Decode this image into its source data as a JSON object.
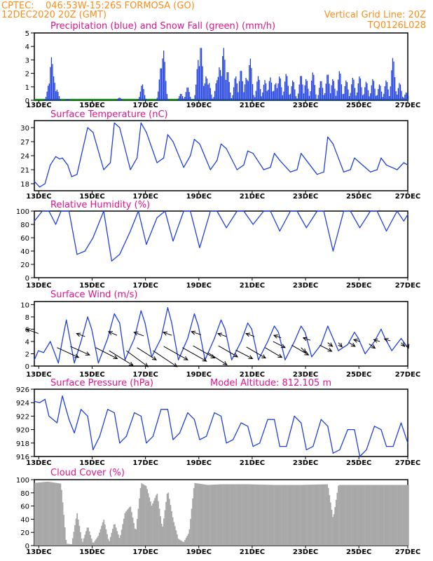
{
  "header": {
    "source": "CPTEC:",
    "location": "046:53W-15:26S   FORMOSA (GO)",
    "init": "12DEC2020 20Z (GMT)",
    "grid_note": "Vertical Grid Line: 20Z",
    "code": "TQ0126L028"
  },
  "colors": {
    "header": "#ff8c1a",
    "title": "#e0148c",
    "line": "#2040e0",
    "snow": "#00a000",
    "cloud": "#a8a8a8",
    "arrow": "#000000"
  },
  "x_axis": {
    "labels": [
      "13DEC",
      "15DEC",
      "17DEC",
      "19DEC",
      "21DEC",
      "23DEC",
      "25DEC",
      "27DEC"
    ],
    "unit": "days from 12DEC2020 20Z"
  },
  "chart_data": [
    {
      "id": "precip",
      "type": "bar",
      "title": "Precipitation (blue) and Snow Fall (green) (mm/h)",
      "ylim": [
        0,
        5
      ],
      "yticks": [
        0,
        1,
        2,
        3,
        4,
        5
      ],
      "peaks": [
        [
          0.55,
          1.2
        ],
        [
          0.65,
          3.2
        ],
        [
          0.72,
          1.8
        ],
        [
          0.85,
          0.8
        ],
        [
          1.25,
          0.1
        ],
        [
          3.2,
          0.2
        ],
        [
          4.05,
          1.2
        ],
        [
          4.75,
          2.5
        ],
        [
          4.85,
          3.7
        ],
        [
          5.5,
          0.5
        ],
        [
          5.75,
          1.0
        ],
        [
          6.15,
          3.0
        ],
        [
          6.25,
          4.1
        ],
        [
          6.45,
          1.8
        ],
        [
          6.55,
          1.3
        ],
        [
          6.85,
          1.5
        ],
        [
          6.95,
          2.5
        ],
        [
          7.1,
          3.9
        ],
        [
          7.25,
          2.2
        ],
        [
          7.55,
          1.8
        ],
        [
          7.75,
          2.3
        ],
        [
          7.95,
          1.7
        ],
        [
          8.1,
          3.1
        ],
        [
          8.4,
          1.8
        ],
        [
          8.65,
          1.5
        ],
        [
          8.85,
          1.7
        ],
        [
          9.05,
          1.3
        ],
        [
          9.2,
          1.8
        ],
        [
          9.45,
          2.0
        ],
        [
          9.7,
          1.5
        ],
        [
          10.0,
          1.9
        ],
        [
          10.2,
          1.6
        ],
        [
          10.45,
          2.1
        ],
        [
          10.75,
          1.5
        ],
        [
          11.0,
          2.0
        ],
        [
          11.2,
          1.6
        ],
        [
          11.45,
          2.2
        ],
        [
          11.7,
          1.5
        ],
        [
          11.95,
          1.7
        ],
        [
          12.2,
          1.8
        ],
        [
          12.45,
          1.4
        ],
        [
          12.7,
          1.6
        ],
        [
          12.95,
          1.2
        ],
        [
          13.2,
          1.5
        ],
        [
          13.45,
          3.2
        ],
        [
          13.7,
          1.3
        ],
        [
          13.95,
          0.6
        ]
      ]
    },
    {
      "id": "temperature",
      "type": "line",
      "title": "Surface Temperature (nC)",
      "ylim": [
        16.5,
        31.5
      ],
      "yticks": [
        18,
        21,
        24,
        27,
        30
      ],
      "x": [
        0,
        0.2,
        0.4,
        0.6,
        0.8,
        0.95,
        1.05,
        1.25,
        1.4,
        1.6,
        2.0,
        2.2,
        2.6,
        2.85,
        3.0,
        3.2,
        3.6,
        3.85,
        4.0,
        4.2,
        4.6,
        4.85,
        5.0,
        5.2,
        5.6,
        5.85,
        6.0,
        6.2,
        6.6,
        6.85,
        7.0,
        7.2,
        7.6,
        7.85,
        8.0,
        8.2,
        8.6,
        8.85,
        9.0,
        9.2,
        9.6,
        9.85,
        10.0,
        10.2,
        10.6,
        10.85,
        11.0,
        11.2,
        11.6,
        11.85,
        12.0,
        12.2,
        12.6,
        12.85,
        13.0,
        13.2,
        13.6,
        13.85,
        14.0
      ],
      "y": [
        18.5,
        17.3,
        18.0,
        22.0,
        23.8,
        23.3,
        23.5,
        22.0,
        19.5,
        20.0,
        30.0,
        29.0,
        21.0,
        22.5,
        31.0,
        30.0,
        21.0,
        23.5,
        31.0,
        29.0,
        22.5,
        23.5,
        28.5,
        27.0,
        21.5,
        24.0,
        27.5,
        26.5,
        21.0,
        23.0,
        26.5,
        25.5,
        21.0,
        22.0,
        25.0,
        24.5,
        21.0,
        21.5,
        24.5,
        23.0,
        20.5,
        21.0,
        24.5,
        23.0,
        20.0,
        20.5,
        28.0,
        26.5,
        20.5,
        21.0,
        23.5,
        22.5,
        20.5,
        21.0,
        23.5,
        22.0,
        21.0,
        22.5,
        22.0
      ]
    },
    {
      "id": "humidity",
      "type": "line",
      "title": "Relative Humidity (%)",
      "ylim": [
        0,
        100
      ],
      "yticks": [
        0,
        20,
        40,
        60,
        80,
        100
      ],
      "x": [
        0,
        0.3,
        0.55,
        0.8,
        1.0,
        1.3,
        1.6,
        1.9,
        2.2,
        2.6,
        2.9,
        3.2,
        3.6,
        3.9,
        4.2,
        4.6,
        4.9,
        5.2,
        5.6,
        5.85,
        6.2,
        6.6,
        6.85,
        7.2,
        7.6,
        7.85,
        8.2,
        8.6,
        8.85,
        9.2,
        9.6,
        9.85,
        10.2,
        10.6,
        10.85,
        11.2,
        11.6,
        11.85,
        12.2,
        12.6,
        12.85,
        13.2,
        13.6,
        13.85,
        14.0
      ],
      "y": [
        85,
        100,
        100,
        80,
        100,
        100,
        35,
        40,
        60,
        100,
        25,
        35,
        70,
        100,
        50,
        90,
        100,
        55,
        100,
        100,
        45,
        100,
        100,
        75,
        100,
        100,
        80,
        100,
        100,
        70,
        100,
        100,
        75,
        100,
        100,
        40,
        100,
        100,
        75,
        100,
        100,
        70,
        100,
        85,
        95
      ]
    },
    {
      "id": "wind",
      "type": "line",
      "title": "Surface Wind (m/s)",
      "ylim": [
        0,
        10.5
      ],
      "yticks": [
        0,
        2,
        4,
        6,
        8,
        10
      ],
      "x": [
        0,
        0.15,
        0.35,
        0.6,
        0.9,
        1.05,
        1.2,
        1.5,
        1.75,
        2.0,
        2.15,
        2.4,
        2.75,
        3.0,
        3.2,
        3.4,
        3.75,
        4.0,
        4.15,
        4.4,
        4.75,
        5.0,
        5.15,
        5.4,
        5.75,
        6.0,
        6.15,
        6.4,
        6.75,
        7.0,
        7.15,
        7.4,
        7.75,
        8.0,
        8.15,
        8.4,
        8.75,
        9.0,
        9.15,
        9.4,
        9.75,
        10.0,
        10.15,
        10.4,
        10.75,
        11.0,
        11.15,
        11.4,
        11.75,
        12.0,
        12.15,
        12.4,
        12.75,
        13.0,
        13.15,
        13.4,
        13.75,
        14.0
      ],
      "y": [
        1.0,
        2.5,
        2.2,
        4.0,
        0.5,
        4.2,
        7.5,
        0.5,
        4.0,
        8.0,
        6.0,
        0.5,
        4.5,
        8.5,
        7.0,
        1.0,
        4.5,
        9.0,
        7.0,
        1.5,
        4.5,
        9.5,
        7.0,
        1.0,
        4.5,
        8.5,
        6.5,
        1.0,
        4.5,
        7.5,
        6.0,
        1.0,
        4.0,
        7.0,
        6.0,
        1.0,
        4.0,
        6.5,
        5.5,
        1.0,
        4.0,
        6.5,
        5.5,
        1.5,
        3.5,
        6.5,
        5.0,
        2.5,
        3.5,
        5.5,
        4.5,
        2.0,
        4.0,
        6.0,
        4.5,
        2.5,
        4.5,
        3.0
      ],
      "arrows": [
        [
          0.15,
          5.3,
          -1.0,
          0.7
        ],
        [
          0.85,
          3.0,
          1.8,
          -1.6
        ],
        [
          1.35,
          3.2,
          1.6,
          -1.4
        ],
        [
          1.9,
          4.8,
          -0.7,
          0.5
        ],
        [
          2.3,
          3.0,
          1.8,
          -1.8
        ],
        [
          2.8,
          2.5,
          2.0,
          -2.4
        ],
        [
          3.1,
          5.0,
          -0.7,
          0.6
        ],
        [
          3.45,
          2.5,
          1.8,
          -2.6
        ],
        [
          3.85,
          3.0,
          1.6,
          -2.0
        ],
        [
          4.1,
          4.9,
          -0.8,
          0.6
        ],
        [
          4.45,
          2.5,
          2.0,
          -2.6
        ],
        [
          4.85,
          3.2,
          2.0,
          -2.2
        ],
        [
          5.15,
          5.0,
          -0.7,
          0.5
        ],
        [
          5.55,
          3.0,
          2.0,
          -2.2
        ],
        [
          5.95,
          3.3,
          1.8,
          -2.0
        ],
        [
          6.25,
          5.1,
          -0.8,
          0.5
        ],
        [
          6.5,
          2.2,
          1.6,
          -2.0
        ],
        [
          6.9,
          3.3,
          1.6,
          -1.8
        ],
        [
          7.2,
          4.8,
          -0.7,
          0.5
        ],
        [
          7.55,
          2.6,
          1.4,
          -1.4
        ],
        [
          7.95,
          3.1,
          1.6,
          -1.8
        ],
        [
          8.25,
          4.8,
          -0.7,
          0.5
        ],
        [
          8.65,
          3.0,
          1.4,
          -1.6
        ],
        [
          8.95,
          4.0,
          1.0,
          -1.0
        ],
        [
          9.25,
          4.6,
          -0.6,
          0.4
        ],
        [
          9.65,
          3.4,
          1.4,
          -1.6
        ],
        [
          10.0,
          3.0,
          0.4,
          -0.8
        ],
        [
          10.35,
          4.2,
          -0.6,
          0.4
        ],
        [
          10.7,
          3.4,
          1.0,
          -1.0
        ],
        [
          11.0,
          3.8,
          0.4,
          -0.6
        ],
        [
          11.4,
          3.8,
          0.3,
          -0.7
        ],
        [
          11.8,
          3.8,
          0.5,
          -0.6
        ],
        [
          12.2,
          4.0,
          -0.5,
          0.3
        ],
        [
          12.55,
          3.6,
          0.5,
          -0.7
        ],
        [
          12.95,
          4.0,
          -0.5,
          0.3
        ],
        [
          13.35,
          4.1,
          -0.5,
          0.3
        ],
        [
          13.75,
          3.8,
          0.3,
          -0.6
        ],
        [
          13.98,
          3.5,
          0.1,
          -0.6
        ]
      ]
    },
    {
      "id": "pressure",
      "type": "line",
      "title": "Surface Pressure (hPa)",
      "annotation": "Model Altitude: 812.105 m",
      "ylim": [
        916,
        926
      ],
      "yticks": [
        916,
        918,
        920,
        922,
        924,
        926
      ],
      "x": [
        0,
        0.2,
        0.4,
        0.55,
        0.85,
        1.05,
        1.3,
        1.5,
        1.75,
        2.0,
        2.2,
        2.45,
        2.75,
        3.0,
        3.2,
        3.45,
        3.75,
        4.0,
        4.2,
        4.45,
        4.75,
        5.0,
        5.2,
        5.45,
        5.75,
        6.0,
        6.2,
        6.45,
        6.75,
        7.0,
        7.2,
        7.45,
        7.75,
        8.0,
        8.2,
        8.45,
        8.75,
        9.0,
        9.2,
        9.45,
        9.75,
        10.0,
        10.2,
        10.45,
        10.75,
        11.0,
        11.2,
        11.45,
        11.75,
        12.0,
        12.2,
        12.45,
        12.75,
        13.0,
        13.2,
        13.45,
        13.75,
        14.0
      ],
      "y": [
        924.2,
        924.0,
        924.5,
        922.0,
        921.0,
        925.0,
        921.5,
        919.5,
        923.0,
        922.0,
        917.0,
        919.0,
        923.0,
        922.5,
        918.0,
        919.0,
        922.5,
        922.0,
        918.0,
        919.0,
        923.0,
        923.0,
        918.5,
        919.5,
        922.5,
        921.5,
        918.5,
        919.0,
        922.5,
        922.0,
        918.0,
        918.5,
        921.0,
        920.5,
        917.5,
        918.0,
        921.5,
        921.5,
        917.5,
        917.5,
        922.0,
        921.0,
        917.0,
        917.5,
        921.5,
        920.5,
        916.5,
        917.0,
        920.0,
        920.0,
        916.0,
        917.0,
        920.5,
        920.0,
        917.5,
        917.5,
        921.0,
        918.0
      ]
    },
    {
      "id": "cloud",
      "type": "bar",
      "title": "Cloud Cover (%)",
      "ylim": [
        0,
        100
      ],
      "yticks": [
        0,
        20,
        40,
        60,
        80,
        100
      ],
      "x": [
        0,
        0.5,
        1.0,
        1.2,
        1.4,
        1.6,
        1.8,
        2.0,
        2.2,
        2.4,
        2.6,
        2.8,
        3.0,
        3.2,
        3.4,
        3.6,
        3.8,
        4.0,
        4.2,
        4.4,
        4.6,
        4.8,
        5.0,
        5.2,
        5.4,
        5.6,
        5.8,
        6.0,
        6.5,
        7.0,
        8.0,
        9.0,
        10.0,
        11.0,
        11.2,
        11.4,
        11.6,
        12.0,
        13.0,
        14.0
      ],
      "y": [
        95,
        97,
        94,
        3,
        2,
        50,
        4,
        30,
        3,
        15,
        40,
        5,
        35,
        10,
        50,
        60,
        20,
        95,
        90,
        60,
        80,
        25,
        85,
        40,
        10,
        5,
        20,
        95,
        92,
        93,
        93,
        92,
        92,
        93,
        40,
        92,
        92,
        92,
        92,
        92
      ]
    }
  ]
}
